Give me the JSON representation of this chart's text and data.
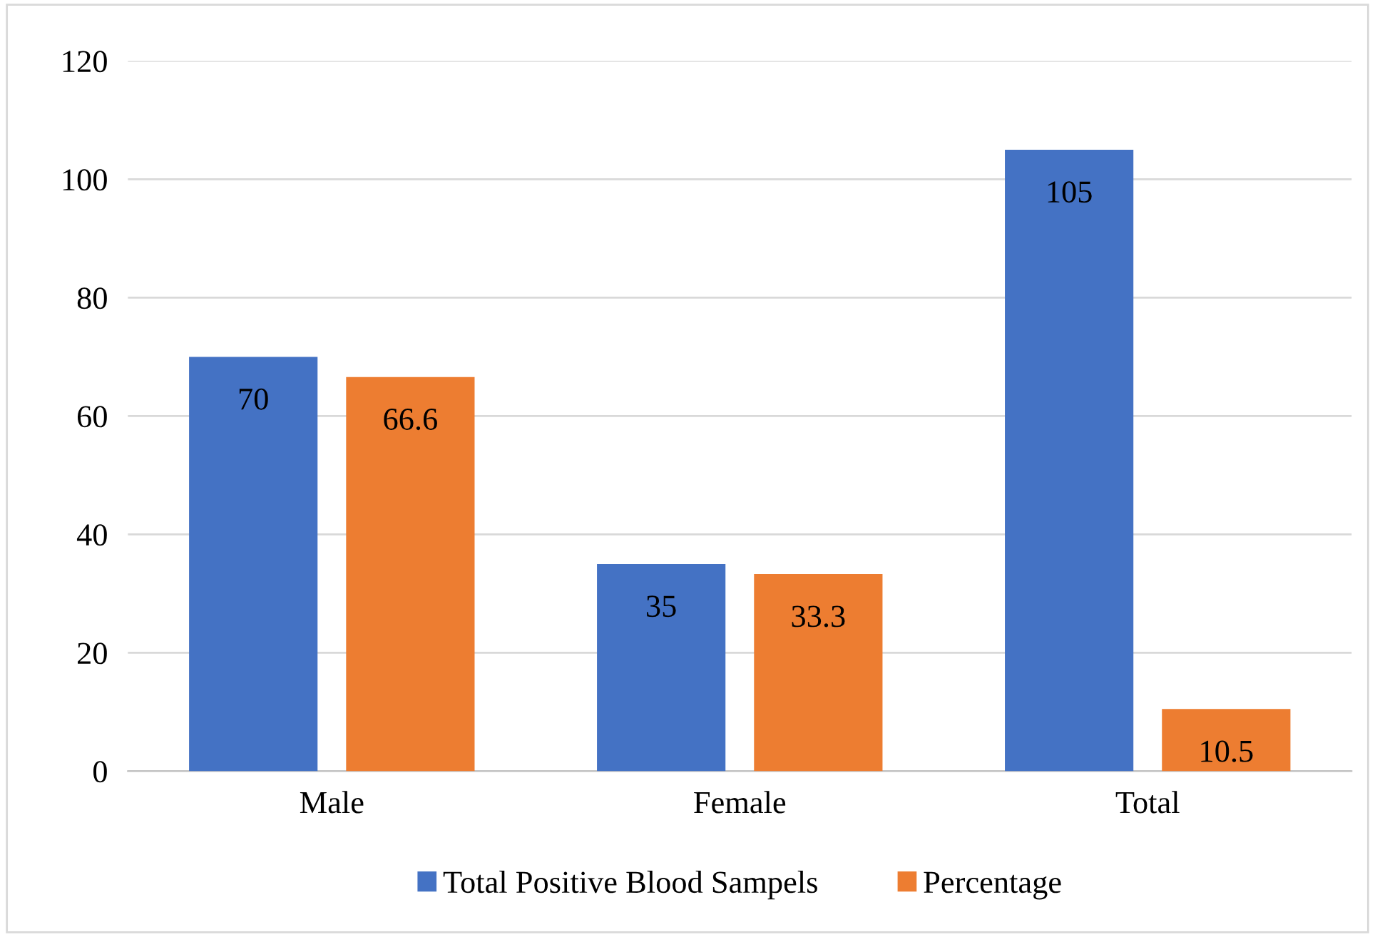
{
  "chart_data": {
    "type": "bar",
    "categories": [
      "Male",
      "Female",
      "Total"
    ],
    "series": [
      {
        "name": "Total Positive Blood Sampels",
        "color": "#4472c4",
        "values": [
          70,
          35,
          105
        ]
      },
      {
        "name": "Percentage",
        "color": "#ed7d31",
        "values": [
          66.6,
          33.3,
          10.5
        ]
      }
    ],
    "ylim": [
      0,
      120
    ],
    "yticks": [
      0,
      20,
      40,
      60,
      80,
      100,
      120
    ],
    "grid": "y",
    "legend": "bottom",
    "data_labels": true
  }
}
